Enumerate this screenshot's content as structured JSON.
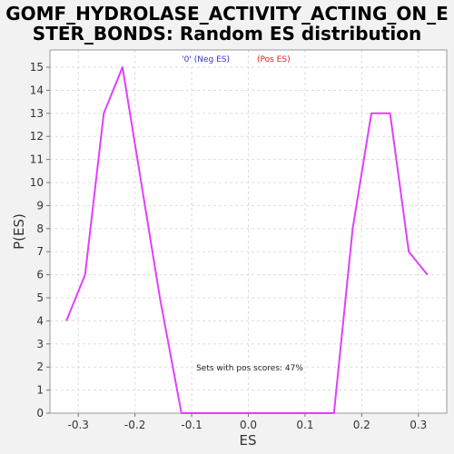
{
  "chart_data": {
    "type": "line",
    "title_line1": "GOMF_HYDROLASE_ACTIVITY_ACTING_ON_E",
    "title_line2": "STER_BONDS: Random ES distribution",
    "xlabel": "ES",
    "ylabel": "P(ES)",
    "xlim": [
      -0.35,
      0.35
    ],
    "ylim": [
      0,
      15.75
    ],
    "xticks": [
      -0.3,
      -0.2,
      -0.1,
      0.0,
      0.1,
      0.2,
      0.3
    ],
    "xtick_labels": [
      "-0.3",
      "-0.2",
      "-0.1",
      "0.0",
      "0.1",
      "0.2",
      "0.3"
    ],
    "yticks": [
      0,
      1,
      2,
      3,
      4,
      5,
      6,
      7,
      8,
      9,
      10,
      11,
      12,
      13,
      14,
      15
    ],
    "grid": true,
    "legend": {
      "placement": "top-center",
      "neg_label": "'0' (Neg ES)",
      "pos_label": "(Pos ES)",
      "neg_color": "#3333cc",
      "pos_color": "#dd2222"
    },
    "annotation": "Sets with pos scores: 47%",
    "series": [
      {
        "color": "#e040fb",
        "x": [
          -0.321,
          -0.288,
          -0.255,
          -0.222,
          -0.189,
          -0.156,
          -0.118,
          0.151,
          0.184,
          0.217,
          0.25,
          0.283,
          0.316
        ],
        "y": [
          4,
          6,
          13,
          15,
          10,
          5,
          0,
          0,
          8,
          13,
          13,
          7,
          6
        ]
      }
    ]
  }
}
